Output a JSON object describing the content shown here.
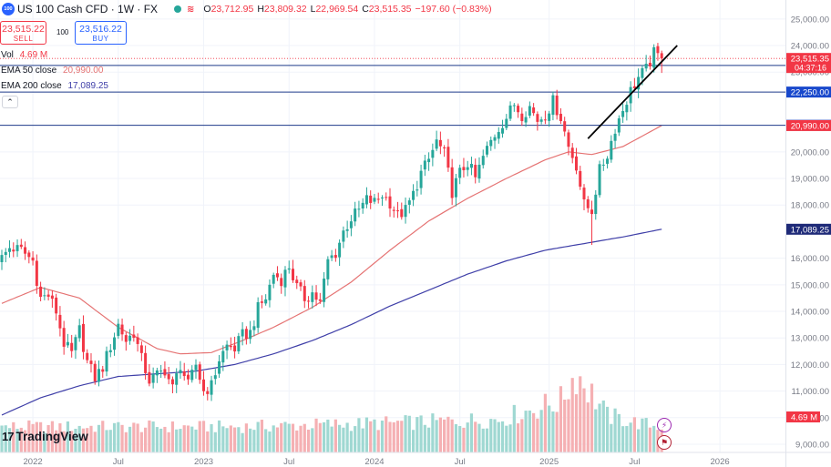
{
  "header": {
    "symbol_badge": "100",
    "title": "US 100 Cash CFD · 1W · FX",
    "indicators_icon": "≋",
    "ohlc": [
      {
        "label": "O",
        "value": "23,712.95"
      },
      {
        "label": "H",
        "value": "23,809.32"
      },
      {
        "label": "L",
        "value": "22,969.54"
      },
      {
        "label": "C",
        "value": "23,515.35"
      },
      {
        "label": "",
        "value": "−197.60 (−0.83%)"
      }
    ]
  },
  "trade": {
    "sell_price": "23,515.22",
    "sell_label": "SELL",
    "spread": "100",
    "buy_price": "23,516.22",
    "buy_label": "BUY"
  },
  "indicators": {
    "vol_label": "Vol",
    "vol_value": "4.69 M",
    "ema50_label": "EMA 50 close",
    "ema50_value": "20,990.00",
    "ema200_label": "EMA 200 close",
    "ema200_value": "17,089.25",
    "collapse_icon": "chevron-up-icon"
  },
  "logo": {
    "mark": "17",
    "text": "TradingView"
  },
  "colors": {
    "up": "#26a69a",
    "down": "#f23645",
    "ema50": "#e57373",
    "ema200": "#3f3fa8",
    "hline": "#1e3a8a",
    "trendline": "#000000",
    "price_tag": "#f23645",
    "hline_tag": "#1848cc",
    "vol_up": "#9fd8d2",
    "vol_down": "#f5b0b3"
  },
  "chart_data": {
    "type": "candlestick",
    "timeframe": "1W",
    "ylim": [
      9000,
      25200
    ],
    "y_ticks": [
      25000,
      24000,
      23000,
      20000,
      19000,
      18000,
      16000,
      15000,
      14000,
      13000,
      12000,
      11000,
      10000,
      9000
    ],
    "x_tick_labels": [
      "2022",
      "Jul",
      "2023",
      "Jul",
      "2024",
      "Jul",
      "2025",
      "Jul",
      "2026"
    ],
    "last": {
      "value": 23515.35,
      "label": "23,515.35",
      "countdown": "04:37:16"
    },
    "horizontal_lines": [
      {
        "value": 23250,
        "label": "23,250.00"
      },
      {
        "value": 22250,
        "label": "22,250.00"
      },
      {
        "value": 21000,
        "label": "21,000.00"
      }
    ],
    "ema50": {
      "value": 20990,
      "label": "20,990.00"
    },
    "ema200": {
      "value": 17089.25,
      "label": "17,089.25"
    },
    "volume_tag": "4.69 M",
    "anchors": [
      [
        0,
        16000
      ],
      [
        2,
        16400
      ],
      [
        5,
        16300
      ],
      [
        8,
        15900
      ],
      [
        10,
        14500
      ],
      [
        12,
        14600
      ],
      [
        14,
        14000
      ],
      [
        16,
        12800
      ],
      [
        18,
        12400
      ],
      [
        20,
        13300
      ],
      [
        22,
        12100
      ],
      [
        24,
        11500
      ],
      [
        26,
        11900
      ],
      [
        28,
        12700
      ],
      [
        30,
        13500
      ],
      [
        32,
        12900
      ],
      [
        34,
        13200
      ],
      [
        36,
        12200
      ],
      [
        38,
        11400
      ],
      [
        40,
        11600
      ],
      [
        42,
        11800
      ],
      [
        44,
        11100
      ],
      [
        46,
        12000
      ],
      [
        48,
        11200
      ],
      [
        50,
        12000
      ],
      [
        52,
        11000
      ],
      [
        54,
        11200
      ],
      [
        56,
        12200
      ],
      [
        58,
        12700
      ],
      [
        60,
        12600
      ],
      [
        62,
        13100
      ],
      [
        64,
        13200
      ],
      [
        66,
        14100
      ],
      [
        68,
        14500
      ],
      [
        70,
        15400
      ],
      [
        72,
        15200
      ],
      [
        74,
        15700
      ],
      [
        76,
        14900
      ],
      [
        78,
        14500
      ],
      [
        80,
        14700
      ],
      [
        82,
        14300
      ],
      [
        84,
        15900
      ],
      [
        86,
        16200
      ],
      [
        88,
        17000
      ],
      [
        90,
        17500
      ],
      [
        92,
        17800
      ],
      [
        94,
        18200
      ],
      [
        96,
        18100
      ],
      [
        98,
        18400
      ],
      [
        100,
        18100
      ],
      [
        102,
        17600
      ],
      [
        104,
        17800
      ],
      [
        106,
        18400
      ],
      [
        108,
        19200
      ],
      [
        110,
        19700
      ],
      [
        112,
        20400
      ],
      [
        114,
        19900
      ],
      [
        116,
        18500
      ],
      [
        118,
        19200
      ],
      [
        120,
        19600
      ],
      [
        122,
        19000
      ],
      [
        124,
        19800
      ],
      [
        126,
        20400
      ],
      [
        128,
        20900
      ],
      [
        130,
        21300
      ],
      [
        132,
        21800
      ],
      [
        134,
        21400
      ],
      [
        136,
        21700
      ],
      [
        138,
        21200
      ],
      [
        140,
        21400
      ],
      [
        142,
        21900
      ],
      [
        144,
        21300
      ],
      [
        146,
        20200
      ],
      [
        148,
        19500
      ],
      [
        150,
        18000
      ],
      [
        152,
        17800
      ],
      [
        154,
        19300
      ],
      [
        156,
        19900
      ],
      [
        158,
        20900
      ],
      [
        160,
        21600
      ],
      [
        162,
        22300
      ],
      [
        164,
        22800
      ],
      [
        166,
        23100
      ],
      [
        168,
        23700
      ],
      [
        170,
        23500
      ]
    ],
    "wicks": {
      "152": 16500,
      "116": 18000,
      "150": 17800
    },
    "ema50_anchors": [
      [
        0,
        14300
      ],
      [
        10,
        14900
      ],
      [
        20,
        14500
      ],
      [
        30,
        13400
      ],
      [
        40,
        12600
      ],
      [
        46,
        12400
      ],
      [
        54,
        12450
      ],
      [
        62,
        12900
      ],
      [
        70,
        13400
      ],
      [
        80,
        14150
      ],
      [
        90,
        15100
      ],
      [
        100,
        16300
      ],
      [
        110,
        17400
      ],
      [
        120,
        18250
      ],
      [
        130,
        19000
      ],
      [
        140,
        19700
      ],
      [
        146,
        20000
      ],
      [
        152,
        19900
      ],
      [
        160,
        20200
      ],
      [
        170,
        20990
      ]
    ],
    "ema200_anchors": [
      [
        0,
        10100
      ],
      [
        10,
        10750
      ],
      [
        20,
        11200
      ],
      [
        30,
        11550
      ],
      [
        40,
        11650
      ],
      [
        50,
        11750
      ],
      [
        60,
        12000
      ],
      [
        70,
        12400
      ],
      [
        80,
        12900
      ],
      [
        90,
        13500
      ],
      [
        100,
        14200
      ],
      [
        110,
        14800
      ],
      [
        120,
        15400
      ],
      [
        130,
        15900
      ],
      [
        140,
        16300
      ],
      [
        150,
        16550
      ],
      [
        160,
        16800
      ],
      [
        170,
        17090
      ]
    ],
    "volume_bands": [
      [
        0,
        0.25
      ],
      [
        60,
        0.25
      ],
      [
        100,
        0.3
      ],
      [
        128,
        0.35
      ],
      [
        144,
        0.6
      ],
      [
        148,
        1.0
      ],
      [
        156,
        0.4
      ],
      [
        164,
        0.3
      ],
      [
        170,
        0.25
      ]
    ],
    "trendline": [
      [
        151,
        20500
      ],
      [
        174,
        24000
      ]
    ]
  }
}
